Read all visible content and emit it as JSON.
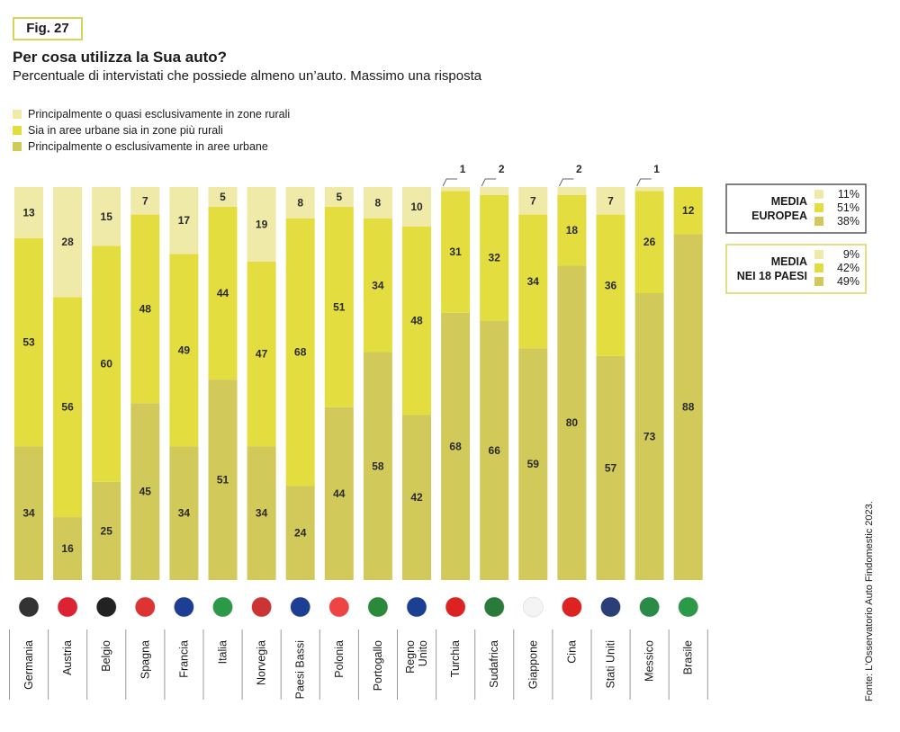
{
  "figure_label": "Fig. 27",
  "source": "Fonte: L'Osservatorio Auto Findomestic 2023.",
  "colors": {
    "rural": "#f0eaa8",
    "mixed": "#e3dd3f",
    "urban": "#d1c95a",
    "badge_border": "#d8d45a",
    "separator": "#9a9a9a"
  },
  "chart_data": {
    "type": "bar",
    "stacked": true,
    "title": "Per cosa utilizza la Sua auto?",
    "subtitle": "Percentuale di intervistati che possiede almeno un’auto. Massimo una risposta",
    "legend_position": "top-left",
    "grid": false,
    "ylim": [
      0,
      100
    ],
    "categories": [
      "Germania",
      "Austria",
      "Belgio",
      "Spagna",
      "Francia",
      "Italia",
      "Norvegia",
      "Paesi Bassi",
      "Polonia",
      "Portogallo",
      "Regno Unito",
      "Turchia",
      "Sudafrica",
      "Giappone",
      "Cina",
      "Stati Uniti",
      "Messico",
      "Brasile"
    ],
    "flag_icons": [
      "flag-germany-icon",
      "flag-austria-icon",
      "flag-belgium-icon",
      "flag-spain-icon",
      "flag-france-icon",
      "flag-italy-icon",
      "flag-norway-icon",
      "flag-netherlands-icon",
      "flag-poland-icon",
      "flag-portugal-icon",
      "flag-uk-icon",
      "flag-turkey-icon",
      "flag-south-africa-icon",
      "flag-japan-icon",
      "flag-china-icon",
      "flag-usa-icon",
      "flag-mexico-icon",
      "flag-brazil-icon"
    ],
    "series": [
      {
        "name": "Principalmente o esclusivamente in aree urbane",
        "key": "urban",
        "values": [
          34,
          16,
          25,
          45,
          34,
          51,
          34,
          24,
          44,
          58,
          42,
          68,
          66,
          59,
          80,
          57,
          73,
          88
        ]
      },
      {
        "name": "Sia in aree urbane sia in zone più rurali",
        "key": "mixed",
        "values": [
          53,
          56,
          60,
          48,
          49,
          44,
          47,
          68,
          51,
          34,
          48,
          31,
          32,
          34,
          18,
          36,
          26,
          12
        ]
      },
      {
        "name": "Principalmente o quasi esclusivamente in zone rurali",
        "key": "rural",
        "values": [
          13,
          28,
          15,
          7,
          17,
          5,
          19,
          8,
          5,
          8,
          10,
          1,
          2,
          7,
          2,
          7,
          1,
          0
        ]
      }
    ],
    "legend_order": [
      "rural",
      "mixed",
      "urban"
    ],
    "averages": [
      {
        "label_lines": [
          "MEDIA",
          "EUROPEA"
        ],
        "values": {
          "rural": "11%",
          "mixed": "51%",
          "urban": "38%"
        }
      },
      {
        "label_lines": [
          "MEDIA",
          "NEI 18 PAESI"
        ],
        "values": {
          "rural": "9%",
          "mixed": "42%",
          "urban": "49%"
        }
      }
    ]
  }
}
